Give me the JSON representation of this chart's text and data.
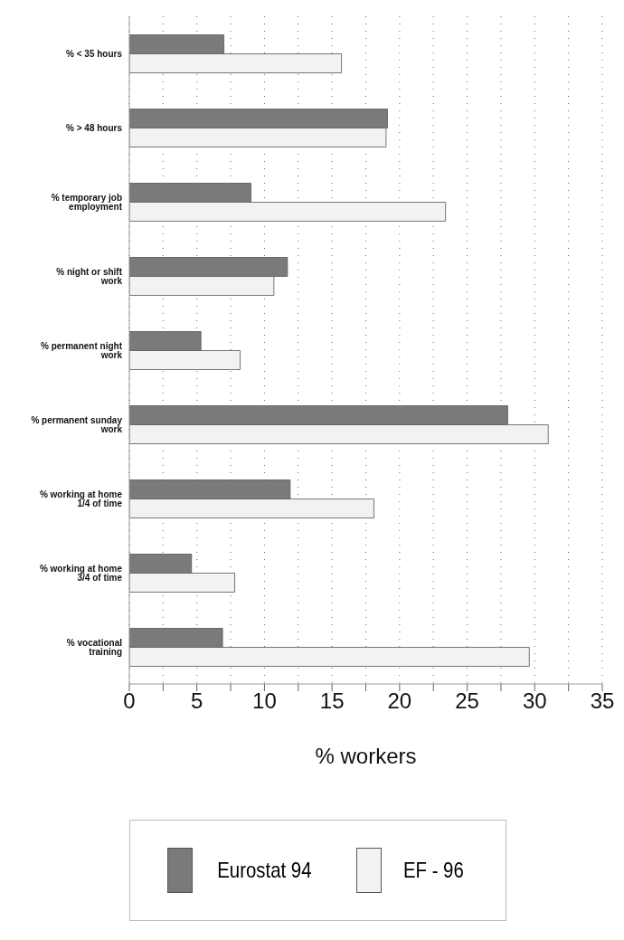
{
  "chart_data": {
    "type": "bar",
    "orientation": "horizontal",
    "xlabel": "% workers",
    "categories": [
      "%  < 35 hours",
      "% > 48 hours",
      "% temporary job employment",
      "% night or shift work",
      "% permanent night work",
      "% permanent sunday work",
      "% working at home 1/4 of time",
      "% working at home 3/4 of time",
      "% vocational training"
    ],
    "series": [
      {
        "name": "Eurostat 94",
        "color": "#7a7a7a",
        "values": [
          7.0,
          19.1,
          9.0,
          11.7,
          5.3,
          28.0,
          11.9,
          4.6,
          6.9
        ]
      },
      {
        "name": "EF - 96",
        "color": "#f2f2f2",
        "values": [
          15.7,
          19.0,
          23.4,
          10.7,
          8.2,
          31.0,
          18.1,
          7.8,
          29.6
        ]
      }
    ],
    "xlim": [
      0,
      35
    ],
    "xticks": [
      0,
      {
        "value": 2.5,
        "label": null
      },
      5,
      {
        "value": 7.5,
        "label": null
      },
      10,
      {
        "value": 12.5,
        "label": null
      },
      15,
      {
        "value": 17.5,
        "label": null
      },
      20,
      {
        "value": 22.5,
        "label": null
      },
      25,
      {
        "value": 27.5,
        "label": null
      },
      30,
      {
        "value": 32.5,
        "label": null
      },
      35
    ],
    "grid": "x",
    "legend": "bottom"
  }
}
